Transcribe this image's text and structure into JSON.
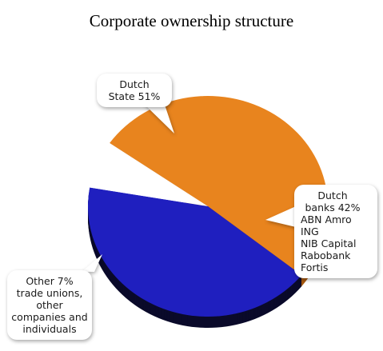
{
  "title": "Corporate ownership structure",
  "colors": {
    "dutch_state": "#E8841E",
    "dutch_banks": "#1F1FBF",
    "other": "#FFFFFF",
    "banks_edge": "#0A0A2A",
    "state_edge": "#A85A10"
  },
  "callouts": {
    "state": {
      "line1": "Dutch",
      "line2": "State 51%"
    },
    "banks": {
      "line1": "Dutch",
      "line2": "banks 42%",
      "members": [
        "ABN Amro",
        "ING",
        "NIB Capital",
        "Rabobank",
        "Fortis"
      ]
    },
    "other": {
      "line1": "Other 7%",
      "line2": "trade unions,",
      "line3": "other",
      "line4": "companies and",
      "line5": "individuals"
    }
  },
  "chart_data": {
    "type": "pie",
    "title": "Corporate ownership structure",
    "slices": [
      {
        "label": "Dutch State",
        "value": 51,
        "color": "#E8841E"
      },
      {
        "label": "Dutch banks",
        "value": 42,
        "color": "#1F1FBF"
      },
      {
        "label": "Other",
        "value": 7,
        "color": "#FFFFFF"
      }
    ]
  }
}
